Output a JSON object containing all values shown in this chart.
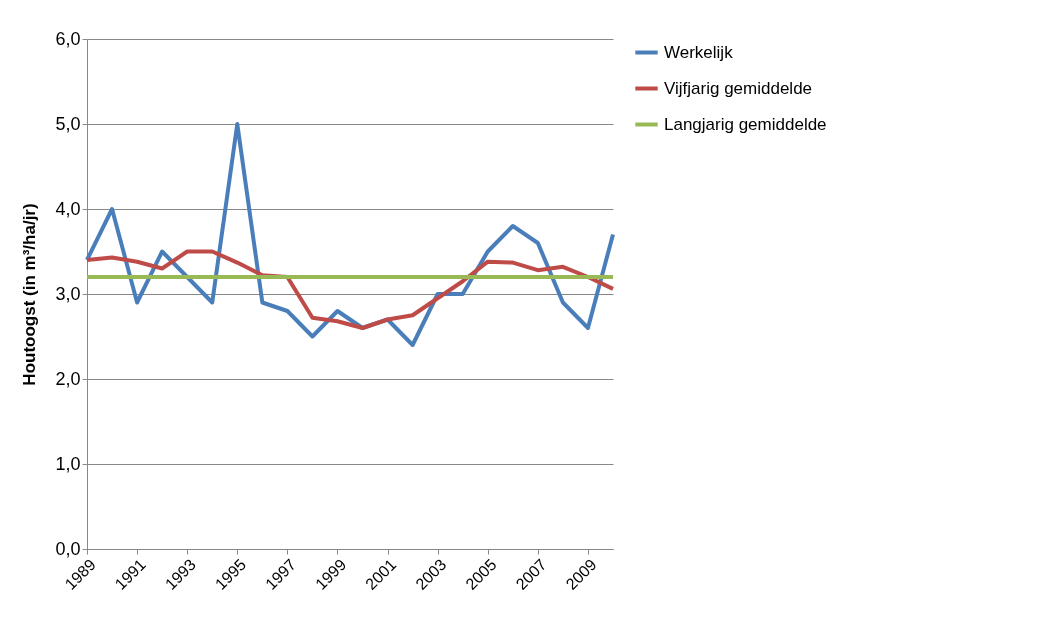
{
  "chart_data": {
    "type": "line",
    "ylabel": "Houtoogst (in m³/ha/jr)",
    "x": [
      1989,
      1990,
      1991,
      1992,
      1993,
      1994,
      1995,
      1996,
      1997,
      1998,
      1999,
      2000,
      2001,
      2002,
      2003,
      2004,
      2005,
      2006,
      2007,
      2008,
      2009,
      2010
    ],
    "xlim": [
      1989,
      2010
    ],
    "xticks": [
      1989,
      1991,
      1993,
      1995,
      1997,
      1999,
      2001,
      2003,
      2005,
      2007,
      2009
    ],
    "ylim": [
      0,
      6
    ],
    "yticks": [
      {
        "value": 0,
        "label": "0,0"
      },
      {
        "value": 1,
        "label": "1,0"
      },
      {
        "value": 2,
        "label": "2,0"
      },
      {
        "value": 3,
        "label": "3,0"
      },
      {
        "value": 4,
        "label": "4,0"
      },
      {
        "value": 5,
        "label": "5,0"
      },
      {
        "value": 6,
        "label": "6,0"
      }
    ],
    "grid": "y",
    "legend": "right",
    "marker": "none",
    "line_style": "solid",
    "series": [
      {
        "name": "Werkelijk",
        "color": "#4a7ebb",
        "values": [
          3.4,
          4.0,
          2.9,
          3.5,
          3.2,
          2.9,
          5.0,
          2.9,
          2.8,
          2.5,
          2.8,
          2.6,
          2.7,
          2.4,
          3.0,
          3.0,
          3.5,
          3.8,
          3.6,
          2.9,
          2.6,
          3.7
        ]
      },
      {
        "name": "Vijfjarig gemiddelde",
        "color": "#be4b48",
        "values": [
          3.4,
          3.43,
          3.38,
          3.3,
          3.5,
          3.5,
          3.37,
          3.22,
          3.2,
          2.72,
          2.68,
          2.6,
          2.7,
          2.75,
          2.95,
          3.15,
          3.38,
          3.37,
          3.28,
          3.32,
          3.2,
          3.06
        ]
      },
      {
        "name": "Langjarig gemiddelde",
        "color": "#98b954",
        "values": [
          3.2,
          3.2,
          3.2,
          3.2,
          3.2,
          3.2,
          3.2,
          3.2,
          3.2,
          3.2,
          3.2,
          3.2,
          3.2,
          3.2,
          3.2,
          3.2,
          3.2,
          3.2,
          3.2,
          3.2,
          3.2,
          3.2
        ]
      }
    ]
  }
}
